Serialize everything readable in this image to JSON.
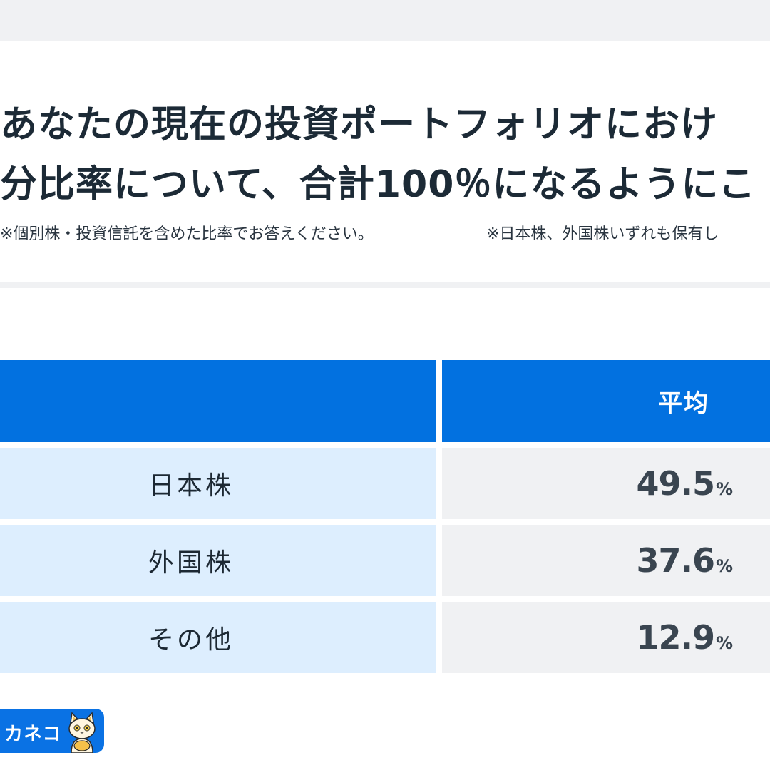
{
  "header": {
    "title_line1": "あなたの現在の投資ポートフォリオにおけ",
    "title_line2": "分比率について、合計100％になるようにこ",
    "note1": "※個別株・投資信託を含めた比率でお答えください。",
    "note2": "※日本株、外国株いずれも保有し"
  },
  "chart_data": {
    "type": "table",
    "columns": [
      "",
      "平均"
    ],
    "rows": [
      {
        "label": "日本株",
        "value": 49.5,
        "value_text": "49.5",
        "unit": "%"
      },
      {
        "label": "外国株",
        "value": 37.6,
        "value_text": "37.6",
        "unit": "%"
      },
      {
        "label": "その他",
        "value": 12.9,
        "value_text": "12.9",
        "unit": "%"
      }
    ]
  },
  "brand": {
    "name": "カネコ",
    "icon": "cat-mascot-icon",
    "color": "#0a72e4"
  },
  "colors": {
    "header_blue": "#0271e0",
    "label_bg": "#ddeefe",
    "value_bg": "#f0f1f3"
  }
}
